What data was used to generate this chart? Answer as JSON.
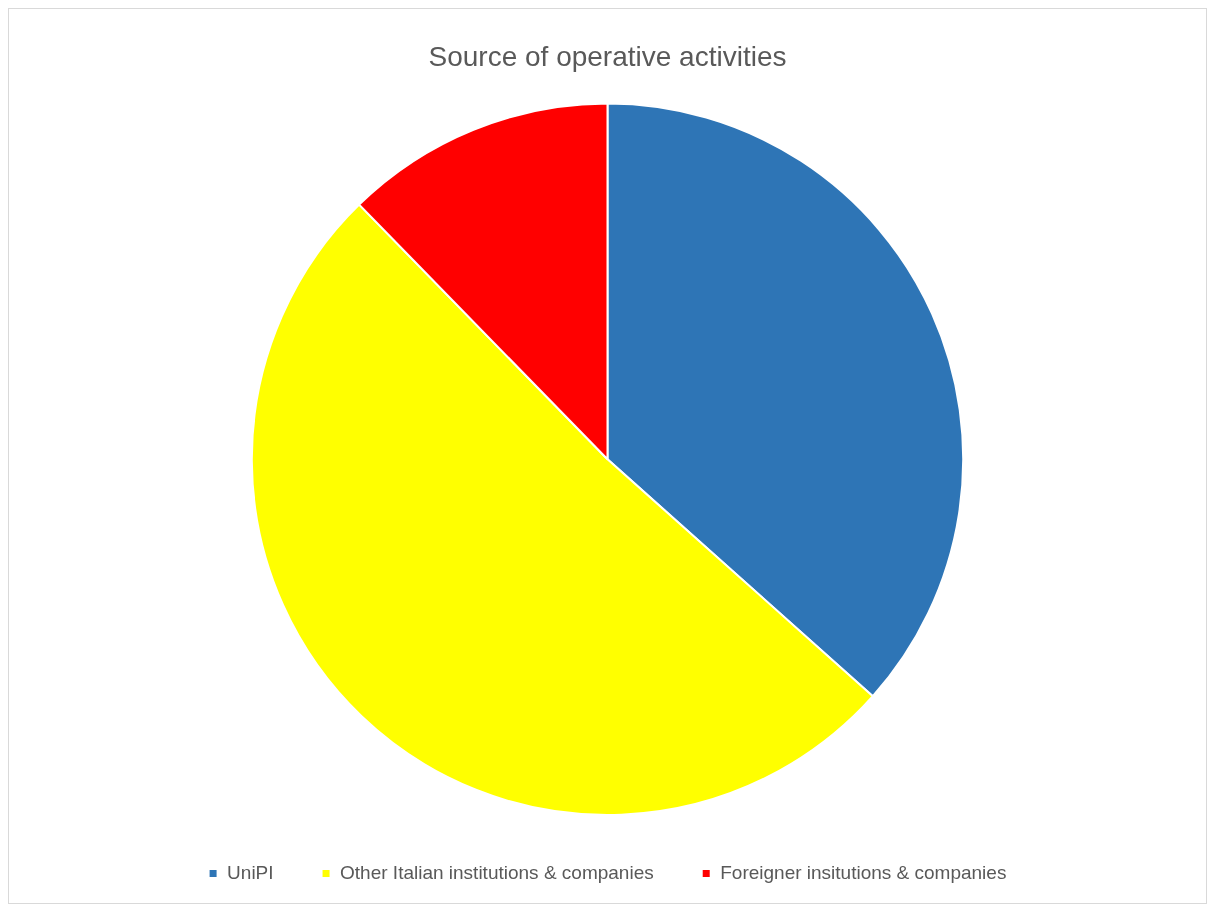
{
  "chart_data": {
    "type": "pie",
    "title": "Source of operative activities",
    "categories": [
      "UniPI",
      "Other Italian institutions & companies",
      "Foreigner insitutions & companies"
    ],
    "values": [
      36.6,
      51.1,
      12.3
    ],
    "colors": [
      "#2e75b6",
      "#ffff00",
      "#ff0000"
    ],
    "legend": "bottom"
  }
}
